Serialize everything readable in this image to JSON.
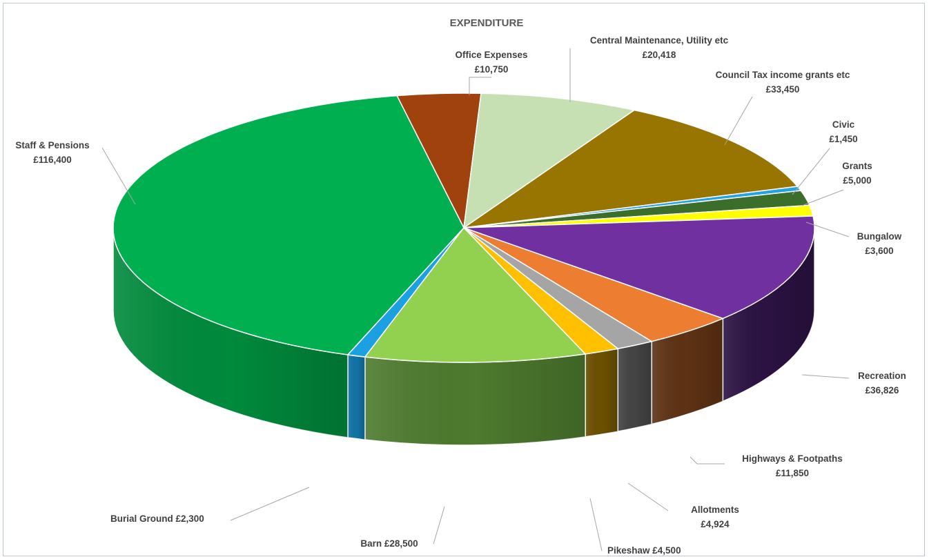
{
  "chart_data": {
    "type": "pie",
    "title": "EXPENDITURE",
    "currency_symbol": "£",
    "slices": [
      {
        "label": "Office Expenses",
        "value": 10750,
        "color": "#a0420e",
        "side": "#6e2d09"
      },
      {
        "label": "Central Maintenance, Utility  etc",
        "value": 20418,
        "color": "#c6e0b4",
        "side": "#8fa882"
      },
      {
        "label": "Council Tax income grants etc",
        "value": 33450,
        "color": "#977500",
        "side": "#6b5300"
      },
      {
        "label": "Civic",
        "value": 1450,
        "color": "#23a3e0",
        "side": "#17709c"
      },
      {
        "label": "Grants",
        "value": 5000,
        "color": "#3b6e2a",
        "side": "#284d1c"
      },
      {
        "label": "Bungalow",
        "value": 3600,
        "color": "#ffff00",
        "side": "#b3b300"
      },
      {
        "label": "Recreation",
        "value": 36826,
        "color": "#7030a0",
        "side": "#2b1242"
      },
      {
        "label": "Highways & Footpaths",
        "value": 11850,
        "color": "#ed7d31",
        "side": "#5e3214"
      },
      {
        "label": "Allotments",
        "value": 4924,
        "color": "#a5a5a5",
        "side": "#444444"
      },
      {
        "label": "Pikeshaw",
        "value": 4500,
        "color": "#ffc000",
        "side": "#6b5000"
      },
      {
        "label": "Barn",
        "value": 28500,
        "color": "#92d050",
        "side": "#4d7a2e"
      },
      {
        "label": "Burial Ground",
        "value": 2300,
        "color": "#1ba1e2",
        "side": "#1273a6"
      },
      {
        "label": "Staff & Pensions",
        "value": 116400,
        "color": "#00b050",
        "side": "#008a3c"
      }
    ]
  },
  "labels": [
    {
      "name": "Office Expenses",
      "line1": "Office Expenses",
      "line2": "£10,750"
    },
    {
      "name": "Central Maintenance",
      "line1": "Central Maintenance, Utility  etc",
      "line2": "£20,418"
    },
    {
      "name": "Council Tax",
      "line1": "Council Tax income grants etc",
      "line2": "£33,450"
    },
    {
      "name": "Civic",
      "line1": "Civic",
      "line2": "£1,450"
    },
    {
      "name": "Grants",
      "line1": "Grants",
      "line2": "£5,000"
    },
    {
      "name": "Bungalow",
      "line1": "Bungalow",
      "line2": "£3,600"
    },
    {
      "name": "Recreation",
      "line1": "Recreation",
      "line2": "£36,826"
    },
    {
      "name": "Highways",
      "line1": "Highways & Footpaths",
      "line2": "£11,850"
    },
    {
      "name": "Allotments",
      "line1": "Allotments",
      "line2": "£4,924"
    },
    {
      "name": "Pikeshaw",
      "line1": "Pikeshaw  £4,500",
      "line2": ""
    },
    {
      "name": "Barn",
      "line1": "Barn  £28,500",
      "line2": ""
    },
    {
      "name": "Burial Ground",
      "line1": "Burial Ground  £2,300",
      "line2": ""
    },
    {
      "name": "Staff & Pensions",
      "line1": "Staff & Pensions",
      "line2": "£116,400"
    }
  ]
}
